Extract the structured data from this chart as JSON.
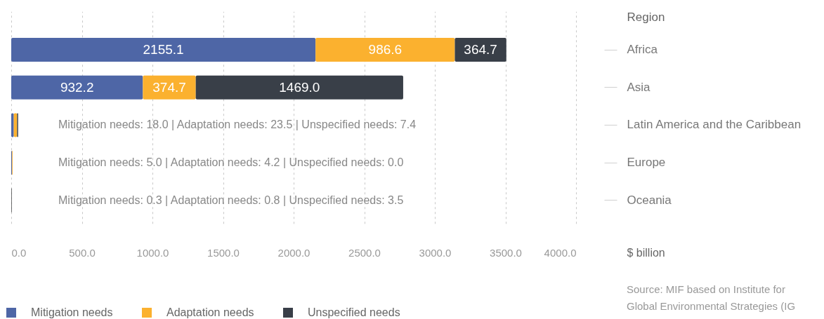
{
  "chart_data": {
    "type": "bar",
    "orientation": "horizontal",
    "stacked": true,
    "categories": [
      "Africa",
      "Asia",
      "Latin America and the Caribbean",
      "Europe",
      "Oceania"
    ],
    "series": [
      {
        "name": "Mitigation needs",
        "color": "#4e66a6",
        "values": [
          2155.1,
          932.2,
          18.0,
          5.0,
          0.3
        ],
        "value_labels": [
          "2155.1",
          "932.2",
          null,
          null,
          null
        ]
      },
      {
        "name": "Adaptation needs",
        "color": "#fbb12f",
        "values": [
          986.6,
          374.7,
          23.5,
          4.2,
          0.8
        ],
        "value_labels": [
          "986.6",
          "374.7",
          null,
          null,
          null
        ]
      },
      {
        "name": "Unspecified needs",
        "color": "#393f48",
        "values": [
          364.7,
          1469.0,
          7.4,
          0.0,
          3.5
        ],
        "value_labels": [
          "364.7",
          "1469.0",
          null,
          null,
          null
        ]
      }
    ],
    "xlim": [
      0,
      4000
    ],
    "xticks": [
      {
        "value": 0,
        "label": "0.0"
      },
      {
        "value": 500,
        "label": "500.0"
      },
      {
        "value": 1000,
        "label": "1000.0"
      },
      {
        "value": 1500,
        "label": "1500.0"
      },
      {
        "value": 2000,
        "label": "2000.0"
      },
      {
        "value": 2500,
        "label": "2500.0"
      },
      {
        "value": 3000,
        "label": "3000.0"
      },
      {
        "value": 3500,
        "label": "3500.0"
      },
      {
        "value": 4000,
        "label": "4000.0"
      }
    ],
    "xlabel": "$ billion",
    "ylabel": "Region",
    "grid": "x",
    "legend": "bottom left",
    "annotations": [
      "Mitigation needs: 18.0 | Adaptation needs: 23.5 | Unspecified needs: 7.4",
      "Mitigation needs: 5.0 | Adaptation needs: 4.2 | Unspecified needs: 0.0",
      "Mitigation needs: 0.3 | Adaptation needs: 0.8 | Unspecified needs: 3.5",
      "Source: MIF based on Institute for Global Environmental Strategies (IG"
    ]
  }
}
